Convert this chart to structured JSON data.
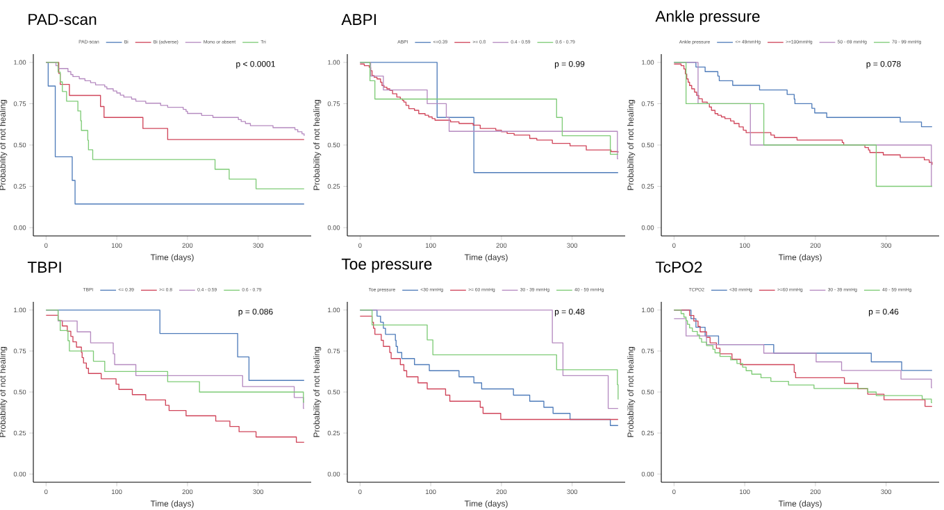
{
  "chart_data": [
    {
      "type": "step",
      "title": "PAD-scan",
      "legend_title": "PAD-scan",
      "xlabel": "Time (days)",
      "ylabel": "Probability of not healing",
      "xlim": [
        -18,
        375
      ],
      "ylim": [
        -0.05,
        1.05
      ],
      "xticks": [
        0,
        100,
        200,
        300
      ],
      "yticks": [
        {
          "value": 0,
          "label": "0.00"
        },
        {
          "value": 0.25,
          "label": "0.25"
        },
        {
          "value": 0.5,
          "label": "0.50"
        },
        {
          "value": 0.75,
          "label": "0.75"
        },
        {
          "value": 1,
          "label": "1.00"
        }
      ],
      "legend": "top",
      "annotations": [
        "p < 0.0001"
      ],
      "series": [
        {
          "name": "Bi",
          "color": "#4f7cba",
          "x": [
            0,
            3,
            13,
            37,
            41,
            365
          ],
          "values": [
            1,
            0.857,
            0.429,
            0.286,
            0.143,
            0.143
          ]
        },
        {
          "name": "Bi (adverse)",
          "color": "#d0455a",
          "x": [
            0,
            18,
            20,
            33,
            77,
            82,
            137,
            172,
            365
          ],
          "values": [
            1,
            0.933,
            0.867,
            0.8,
            0.733,
            0.667,
            0.6,
            0.533,
            0.533
          ]
        },
        {
          "name": "Mono or absent",
          "color": "#b58ac0",
          "x": [
            0,
            14,
            17,
            31,
            35,
            38,
            47,
            55,
            63,
            70,
            83,
            86,
            95,
            100,
            105,
            110,
            121,
            127,
            141,
            162,
            172,
            194,
            198,
            200,
            220,
            236,
            272,
            276,
            282,
            289,
            321,
            352,
            356,
            362,
            365
          ],
          "values": [
            1,
            0.98,
            0.963,
            0.944,
            0.926,
            0.914,
            0.901,
            0.889,
            0.877,
            0.864,
            0.852,
            0.84,
            0.827,
            0.815,
            0.802,
            0.79,
            0.778,
            0.765,
            0.753,
            0.74,
            0.728,
            0.716,
            0.704,
            0.691,
            0.679,
            0.667,
            0.654,
            0.642,
            0.63,
            0.617,
            0.605,
            0.593,
            0.58,
            0.568,
            0.556
          ]
        },
        {
          "name": "Tri",
          "color": "#7ecb76",
          "x": [
            0,
            17,
            20,
            23,
            29,
            45,
            49,
            50,
            59,
            60,
            66,
            239,
            259,
            297,
            365
          ],
          "values": [
            1,
            0.941,
            0.882,
            0.824,
            0.765,
            0.706,
            0.647,
            0.588,
            0.529,
            0.471,
            0.412,
            0.353,
            0.294,
            0.235,
            0.235
          ]
        }
      ]
    },
    {
      "type": "step",
      "title": "ABPI",
      "legend_title": "ABPI",
      "xlabel": "Time (days)",
      "ylabel": "Probability of not healing",
      "xlim": [
        -18,
        375
      ],
      "ylim": [
        -0.05,
        1.05
      ],
      "xticks": [
        0,
        100,
        200,
        300
      ],
      "yticks": [
        {
          "value": 0,
          "label": "0.00"
        },
        {
          "value": 0.25,
          "label": "0.25"
        },
        {
          "value": 0.5,
          "label": "0.50"
        },
        {
          "value": 0.75,
          "label": "0.75"
        },
        {
          "value": 1,
          "label": "1.00"
        }
      ],
      "legend": "top",
      "annotations": [
        "p = 0.99"
      ],
      "series": [
        {
          "name": "<=0.39",
          "color": "#4f7cba",
          "x": [
            0,
            109,
            161,
            365
          ],
          "values": [
            1,
            0.667,
            0.333,
            0.333
          ]
        },
        {
          "name": ">= 0.8",
          "color": "#d0455a",
          "x": [
            0,
            6,
            13,
            15,
            17,
            20,
            24,
            29,
            31,
            34,
            38,
            42,
            46,
            52,
            57,
            60,
            62,
            65,
            69,
            77,
            83,
            92,
            97,
            102,
            106,
            128,
            140,
            160,
            170,
            192,
            200,
            208,
            218,
            240,
            250,
            272,
            297,
            320,
            355,
            365
          ],
          "values": [
            0.99,
            0.98,
            0.97,
            0.95,
            0.92,
            0.91,
            0.9,
            0.88,
            0.86,
            0.85,
            0.84,
            0.83,
            0.81,
            0.79,
            0.78,
            0.77,
            0.76,
            0.74,
            0.72,
            0.71,
            0.69,
            0.68,
            0.67,
            0.66,
            0.65,
            0.64,
            0.63,
            0.62,
            0.6,
            0.59,
            0.58,
            0.57,
            0.56,
            0.54,
            0.53,
            0.51,
            0.495,
            0.47,
            0.46,
            0.455
          ]
        },
        {
          "name": "0.4 - 0.59",
          "color": "#b58ac0",
          "x": [
            0,
            15,
            33,
            95,
            122,
            126,
            364,
            365
          ],
          "values": [
            1,
            0.917,
            0.833,
            0.75,
            0.667,
            0.583,
            0.417,
            0.417
          ]
        },
        {
          "name": "0.6 - 0.79",
          "color": "#7ecb76",
          "x": [
            0,
            14,
            21,
            278,
            286,
            354,
            365
          ],
          "values": [
            1,
            0.889,
            0.778,
            0.667,
            0.556,
            0.444,
            0.444
          ]
        }
      ]
    },
    {
      "type": "step",
      "title": "Ankle pressure",
      "legend_title": "Ankle pressure",
      "xlabel": "Time (days)",
      "ylabel": "Probability of not healing",
      "xlim": [
        -18,
        375
      ],
      "ylim": [
        -0.05,
        1.05
      ],
      "xticks": [
        0,
        100,
        200,
        300
      ],
      "yticks": [
        {
          "value": 0,
          "label": "0.00"
        },
        {
          "value": 0.25,
          "label": "0.25"
        },
        {
          "value": 0.5,
          "label": "0.50"
        },
        {
          "value": 0.75,
          "label": "0.75"
        },
        {
          "value": 1,
          "label": "1.00"
        }
      ],
      "legend": "top",
      "annotations": [
        "p = 0.078"
      ],
      "series": [
        {
          "name": "<= 49mmHg",
          "color": "#4f7cba",
          "x": [
            0,
            31,
            44,
            62,
            64,
            83,
            121,
            160,
            170,
            171,
            195,
            199,
            216,
            320,
            350,
            365
          ],
          "values": [
            1,
            0.972,
            0.944,
            0.917,
            0.889,
            0.861,
            0.833,
            0.806,
            0.778,
            0.75,
            0.722,
            0.694,
            0.667,
            0.639,
            0.611,
            0.611
          ]
        },
        {
          "name": ">=100mmHg",
          "color": "#d0455a",
          "x": [
            0,
            10,
            14,
            16,
            18,
            20,
            22,
            25,
            29,
            32,
            35,
            40,
            47,
            50,
            53,
            58,
            62,
            67,
            72,
            80,
            85,
            92,
            98,
            102,
            137,
            142,
            174,
            238,
            240,
            270,
            275,
            277,
            296,
            320,
            354,
            361,
            365
          ],
          "values": [
            0.99,
            0.98,
            0.96,
            0.93,
            0.9,
            0.88,
            0.86,
            0.84,
            0.82,
            0.8,
            0.78,
            0.76,
            0.75,
            0.73,
            0.71,
            0.69,
            0.68,
            0.67,
            0.66,
            0.645,
            0.63,
            0.61,
            0.59,
            0.575,
            0.56,
            0.545,
            0.53,
            0.515,
            0.5,
            0.485,
            0.47,
            0.455,
            0.44,
            0.425,
            0.41,
            0.395,
            0.38
          ]
        },
        {
          "name": "50 - 69 mmHg",
          "color": "#b58ac0",
          "x": [
            0,
            34,
            108,
            364,
            365
          ],
          "values": [
            1,
            0.75,
            0.5,
            0.25,
            0.25
          ]
        },
        {
          "name": "70 - 99 mmHg",
          "color": "#7ecb76",
          "x": [
            0,
            17,
            127,
            286,
            365
          ],
          "values": [
            1,
            0.75,
            0.5,
            0.25,
            0.25
          ]
        }
      ]
    },
    {
      "type": "step",
      "title": "TBPI",
      "legend_title": "TBPI",
      "xlabel": "Time (days)",
      "ylabel": "Probability of not healing",
      "xlim": [
        -18,
        375
      ],
      "ylim": [
        -0.05,
        1.05
      ],
      "xticks": [
        0,
        100,
        200,
        300
      ],
      "yticks": [
        {
          "value": 0,
          "label": "0.00"
        },
        {
          "value": 0.25,
          "label": "0.25"
        },
        {
          "value": 0.5,
          "label": "0.50"
        },
        {
          "value": 0.75,
          "label": "0.75"
        },
        {
          "value": 1,
          "label": "1.00"
        }
      ],
      "legend": "top",
      "annotations": [
        "p = 0.086"
      ],
      "series": [
        {
          "name": "<= 0.39",
          "color": "#4f7cba",
          "x": [
            0,
            161,
            271,
            287,
            365
          ],
          "values": [
            1,
            0.857,
            0.714,
            0.571,
            0.571
          ]
        },
        {
          "name": ">= 0.8",
          "color": "#d0455a",
          "x": [
            0,
            17,
            23,
            30,
            35,
            38,
            43,
            50,
            51,
            53,
            57,
            60,
            78,
            99,
            103,
            122,
            141,
            169,
            174,
            198,
            240,
            260,
            273,
            297,
            354,
            365
          ],
          "values": [
            0.968,
            0.935,
            0.903,
            0.871,
            0.839,
            0.806,
            0.774,
            0.742,
            0.71,
            0.677,
            0.645,
            0.613,
            0.581,
            0.548,
            0.516,
            0.484,
            0.452,
            0.419,
            0.387,
            0.355,
            0.323,
            0.29,
            0.258,
            0.226,
            0.194,
            0.194
          ]
        },
        {
          "name": "0.4 - 0.59",
          "color": "#b58ac0",
          "x": [
            0,
            17,
            44,
            63,
            95,
            97,
            127,
            278,
            351,
            364,
            365
          ],
          "values": [
            1,
            0.933,
            0.867,
            0.8,
            0.733,
            0.667,
            0.6,
            0.533,
            0.467,
            0.4,
            0.4
          ]
        },
        {
          "name": "0.6 - 0.79",
          "color": "#7ecb76",
          "x": [
            0,
            17,
            20,
            31,
            33,
            67,
            83,
            172,
            217,
            364,
            365
          ],
          "values": [
            1,
            0.938,
            0.875,
            0.813,
            0.75,
            0.688,
            0.625,
            0.563,
            0.5,
            0.438,
            0.438
          ]
        }
      ]
    },
    {
      "type": "step",
      "title": "Toe pressure",
      "legend_title": "Toe pressure",
      "xlabel": "Time (days)",
      "ylabel": "Probability of not healing",
      "xlim": [
        -18,
        375
      ],
      "ylim": [
        -0.05,
        1.05
      ],
      "xticks": [
        0,
        100,
        200,
        300
      ],
      "yticks": [
        {
          "value": 0,
          "label": "0.00"
        },
        {
          "value": 0.25,
          "label": "0.25"
        },
        {
          "value": 0.5,
          "label": "0.50"
        },
        {
          "value": 0.75,
          "label": "0.75"
        },
        {
          "value": 1,
          "label": "1.00"
        }
      ],
      "legend": "top",
      "annotations": [
        "p = 0.48"
      ],
      "series": [
        {
          "name": "<30 mmHg",
          "color": "#4f7cba",
          "x": [
            0,
            24,
            29,
            33,
            36,
            50,
            51,
            53,
            59,
            77,
            98,
            140,
            161,
            172,
            217,
            240,
            260,
            273,
            297,
            354,
            365
          ],
          "values": [
            1,
            0.963,
            0.926,
            0.889,
            0.852,
            0.815,
            0.778,
            0.741,
            0.704,
            0.667,
            0.63,
            0.593,
            0.556,
            0.519,
            0.481,
            0.444,
            0.407,
            0.37,
            0.333,
            0.296,
            0.296
          ]
        },
        {
          "name": ">= 60 mmHg",
          "color": "#d0455a",
          "x": [
            0,
            17,
            19,
            21,
            30,
            33,
            42,
            44,
            57,
            62,
            66,
            82,
            95,
            121,
            127,
            170,
            174,
            199,
            365
          ],
          "values": [
            0.963,
            0.926,
            0.889,
            0.852,
            0.815,
            0.778,
            0.741,
            0.704,
            0.667,
            0.63,
            0.593,
            0.556,
            0.519,
            0.481,
            0.444,
            0.407,
            0.37,
            0.333,
            0.333
          ]
        },
        {
          "name": "30 - 39 mmHg",
          "color": "#b58ac0",
          "x": [
            0,
            272,
            287,
            351,
            365
          ],
          "values": [
            1,
            0.8,
            0.6,
            0.4,
            0.4
          ]
        },
        {
          "name": "40 - 59 mmHg",
          "color": "#7ecb76",
          "x": [
            0,
            17,
            95,
            103,
            278,
            364,
            365
          ],
          "values": [
            1,
            0.909,
            0.818,
            0.727,
            0.636,
            0.545,
            0.455
          ]
        }
      ]
    },
    {
      "type": "step",
      "title": "TcPO2",
      "legend_title": "TCPO2",
      "xlabel": "Time (days)",
      "ylabel": "Probability of not healing",
      "xlim": [
        -18,
        375
      ],
      "ylim": [
        -0.05,
        1.05
      ],
      "xticks": [
        0,
        100,
        200,
        300
      ],
      "yticks": [
        {
          "value": 0,
          "label": "0.00"
        },
        {
          "value": 0.25,
          "label": "0.25"
        },
        {
          "value": 0.5,
          "label": "0.50"
        },
        {
          "value": 0.75,
          "label": "0.75"
        },
        {
          "value": 1,
          "label": "1.00"
        }
      ],
      "legend": "top",
      "annotations": [
        "p = 0.46"
      ],
      "series": [
        {
          "name": "<30 mmHg",
          "color": "#4f7cba",
          "x": [
            0,
            24,
            31,
            44,
            63,
            141,
            279,
            322,
            365
          ],
          "values": [
            1,
            0.947,
            0.895,
            0.842,
            0.789,
            0.737,
            0.684,
            0.632,
            0.632
          ]
        },
        {
          "name": ">=60 mmHg",
          "color": "#d0455a",
          "x": [
            0,
            22,
            28,
            34,
            37,
            46,
            51,
            60,
            65,
            82,
            94,
            170,
            172,
            241,
            260,
            274,
            297,
            355,
            365
          ],
          "values": [
            1,
            0.967,
            0.933,
            0.9,
            0.867,
            0.833,
            0.8,
            0.767,
            0.733,
            0.7,
            0.667,
            0.62,
            0.587,
            0.553,
            0.52,
            0.487,
            0.453,
            0.413,
            0.413
          ]
        },
        {
          "name": "30 - 39 mmHg",
          "color": "#b58ac0",
          "x": [
            0,
            17,
            46,
            127,
            201,
            237,
            321,
            364,
            365
          ],
          "values": [
            0.947,
            0.842,
            0.789,
            0.737,
            0.684,
            0.632,
            0.579,
            0.526,
            0.526
          ]
        },
        {
          "name": "40 - 59 mmHg",
          "color": "#7ecb76",
          "x": [
            0,
            10,
            14,
            17,
            19,
            22,
            26,
            33,
            36,
            39,
            46,
            55,
            58,
            65,
            80,
            89,
            97,
            102,
            110,
            123,
            137,
            162,
            198,
            274,
            286,
            351,
            364,
            365
          ],
          "values": [
            1,
            0.978,
            0.957,
            0.935,
            0.913,
            0.891,
            0.87,
            0.848,
            0.826,
            0.804,
            0.783,
            0.761,
            0.739,
            0.717,
            0.696,
            0.674,
            0.652,
            0.63,
            0.609,
            0.587,
            0.565,
            0.543,
            0.522,
            0.5,
            0.478,
            0.457,
            0.435,
            0.435
          ]
        }
      ]
    }
  ]
}
